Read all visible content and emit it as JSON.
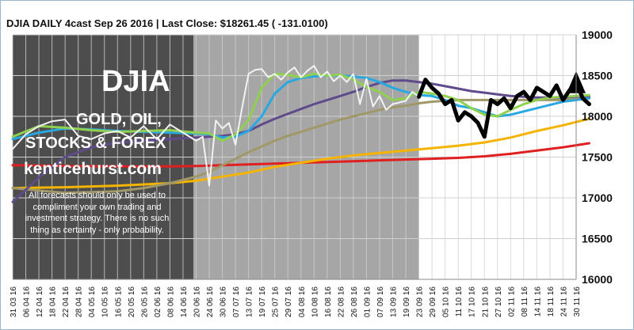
{
  "header": {
    "title": "DJIA DAILY 4cast  Sep 26 2016 | Last Close: $18261.45 ( -131.0100)"
  },
  "watermark": {
    "logo": "DJIA",
    "subtitle_line1": "GOLD, OIL,",
    "subtitle_line2": "STOCKS & FOREX",
    "site": "kenticehurst.com"
  },
  "disclaimer": "All forecasts should only be used to compliment your own trading and investment strategy. There is no such thing as certainty - only probability.",
  "colors": {
    "background": "#ffffff",
    "dark_shade": "#4d4d4d",
    "mid_shade": "#a6a6a6",
    "grid": "#d0d0d0",
    "price": "#f2f2f2",
    "forecast": "#000000",
    "ma_green": "#8fd14f",
    "ma_blue": "#29a8e0",
    "ma_purple": "#5f4b8b",
    "ma_tan": "#a09868",
    "ma_orange": "#f5b400",
    "ma_red": "#e02020"
  },
  "chart_data": {
    "type": "line",
    "title": "DJIA DAILY 4cast  Sep 26 2016 | Last Close: $18261.45 ( -131.0100)",
    "ylim": [
      16000,
      19000
    ],
    "yticks": [
      16000,
      16500,
      17000,
      17500,
      18000,
      18500,
      19000
    ],
    "y_axis_side": "right",
    "grid": true,
    "x_tick_labels": [
      "31 03 16",
      "06 04 16",
      "12 04 16",
      "18 04 16",
      "22 04 16",
      "28 04 16",
      "04 05 16",
      "10 05 16",
      "16 05 16",
      "20 05 16",
      "26 05 16",
      "02 06 16",
      "08 06 16",
      "14 06 16",
      "20 06 16",
      "24 06 16",
      "30 06 16",
      "07 07 16",
      "13 07 16",
      "19 07 16",
      "25 07 16",
      "29 07 16",
      "04 08 16",
      "10 08 16",
      "16 08 16",
      "22 08 16",
      "26 08 16",
      "01 09 16",
      "07 09 16",
      "13 09 16",
      "19 09 16",
      "23 09 16",
      "29 09 16",
      "05 10 16",
      "11 10 16",
      "17 10 16",
      "21 10 16",
      "27 10 16",
      "02 11 16",
      "08 11 16",
      "14 11 16",
      "18 11 16",
      "24 11 16",
      "30 11 16"
    ],
    "shading": [
      {
        "from_index": 0,
        "to_index": 13.8,
        "tone": "dark"
      },
      {
        "from_index": 13.8,
        "to_index": 31,
        "tone": "medium"
      }
    ],
    "series": [
      {
        "role": "price",
        "color": "#f2f2f2",
        "x": [
          0,
          1,
          2,
          3,
          4,
          5,
          6,
          7,
          8,
          9,
          10,
          11,
          12,
          13,
          14,
          14.5,
          15,
          15.5,
          16,
          16.5,
          17,
          17.5,
          18,
          18.5,
          19,
          19.5,
          20,
          20.5,
          21,
          21.5,
          22,
          22.5,
          23,
          23.5,
          24,
          24.5,
          25,
          25.5,
          26,
          26.5,
          27,
          27.5,
          28,
          28.5,
          29,
          29.5,
          30,
          30.5,
          31
        ],
        "values": [
          17600,
          17780,
          17880,
          17940,
          17960,
          17760,
          17720,
          17790,
          17820,
          17740,
          17880,
          17720,
          17900,
          17800,
          17700,
          17750,
          17150,
          17950,
          17850,
          17920,
          17650,
          18100,
          18520,
          18570,
          18580,
          18480,
          18520,
          18450,
          18540,
          18600,
          18480,
          18560,
          18620,
          18480,
          18550,
          18430,
          18500,
          18420,
          18520,
          18150,
          18460,
          18120,
          18250,
          18080,
          18150,
          18170,
          18190,
          18300,
          18240
        ]
      },
      {
        "role": "forecast",
        "color": "#000000",
        "x": [
          31,
          31.5,
          32,
          32.5,
          33,
          33.5,
          34,
          34.5,
          35,
          35.5,
          36,
          36.5,
          37,
          37.5,
          38,
          38.5,
          39,
          39.5,
          40,
          40.5,
          41,
          41.5,
          42,
          42.5,
          43,
          43.5,
          44
        ],
        "values": [
          18240,
          18450,
          18350,
          18280,
          18150,
          18200,
          17950,
          18050,
          18000,
          17920,
          17750,
          18200,
          18150,
          18220,
          18100,
          18250,
          18300,
          18200,
          18350,
          18300,
          18250,
          18380,
          18200,
          18320,
          18420,
          18220,
          18150
        ]
      },
      {
        "role": "moving-average",
        "color": "#8fd14f",
        "x": [
          0,
          2,
          4,
          6,
          8,
          10,
          12,
          14,
          15,
          16,
          17,
          18,
          19,
          20,
          21,
          22,
          23,
          24,
          25,
          26,
          27,
          28,
          29,
          30,
          31,
          32,
          33,
          34,
          35,
          36,
          37,
          38,
          39,
          40,
          41,
          42,
          43,
          44
        ],
        "values": [
          17750,
          17880,
          17860,
          17830,
          17810,
          17820,
          17830,
          17800,
          17790,
          17700,
          17780,
          17950,
          18350,
          18520,
          18510,
          18480,
          18520,
          18500,
          18510,
          18450,
          18360,
          18300,
          18200,
          18220,
          18300,
          18280,
          18250,
          18200,
          18100,
          18020,
          18000,
          18080,
          18150,
          18200,
          18230,
          18240,
          18250,
          18260
        ]
      },
      {
        "role": "moving-average",
        "color": "#29a8e0",
        "x": [
          0,
          2,
          4,
          6,
          8,
          10,
          12,
          14,
          15,
          16,
          17,
          18,
          19,
          20,
          21,
          22,
          23,
          24,
          25,
          26,
          27,
          28,
          29,
          30,
          31,
          32,
          33,
          34,
          35,
          36,
          37,
          38,
          39,
          40,
          41,
          42,
          43,
          44
        ],
        "values": [
          17720,
          17800,
          17850,
          17840,
          17820,
          17810,
          17800,
          17790,
          17780,
          17740,
          17750,
          17820,
          18000,
          18280,
          18420,
          18470,
          18490,
          18500,
          18500,
          18490,
          18470,
          18420,
          18350,
          18300,
          18260,
          18250,
          18200,
          18130,
          18100,
          18050,
          18000,
          18020,
          18060,
          18100,
          18140,
          18180,
          18200,
          18220
        ]
      },
      {
        "role": "moving-average",
        "color": "#5f4b8b",
        "x": [
          0,
          2,
          4,
          6,
          8,
          10,
          12,
          14,
          15,
          16,
          17,
          18,
          19,
          20,
          21,
          22,
          23,
          24,
          25,
          26,
          27,
          28,
          29,
          30,
          31,
          32,
          33,
          34,
          35,
          36,
          37,
          38,
          39,
          40,
          41,
          42,
          43,
          44
        ],
        "values": [
          16950,
          17250,
          17500,
          17620,
          17680,
          17700,
          17720,
          17740,
          17750,
          17760,
          17780,
          17820,
          17900,
          17970,
          18030,
          18090,
          18150,
          18200,
          18250,
          18300,
          18360,
          18410,
          18440,
          18440,
          18420,
          18400,
          18370,
          18340,
          18310,
          18290,
          18270,
          18250,
          18240,
          18230,
          18230,
          18230,
          18240,
          18240
        ]
      },
      {
        "role": "moving-average",
        "color": "#a09868",
        "x": [
          0,
          2,
          4,
          6,
          8,
          10,
          12,
          14,
          15,
          16,
          17,
          18,
          19,
          20,
          21,
          22,
          23,
          24,
          25,
          26,
          27,
          28,
          29,
          30,
          31,
          32,
          33,
          34,
          35,
          36,
          37,
          38,
          39,
          40,
          41,
          42,
          43,
          44
        ],
        "values": [
          17120,
          17090,
          17060,
          17070,
          17080,
          17120,
          17180,
          17260,
          17320,
          17400,
          17480,
          17560,
          17630,
          17700,
          17760,
          17810,
          17860,
          17910,
          17960,
          18000,
          18040,
          18080,
          18110,
          18130,
          18160,
          18180,
          18190,
          18200,
          18200,
          18200,
          18200,
          18200,
          18200,
          18200,
          18200,
          18200,
          18210,
          18220
        ]
      },
      {
        "role": "moving-average",
        "color": "#f5b400",
        "x": [
          0,
          4,
          8,
          12,
          14,
          16,
          18,
          20,
          22,
          24,
          26,
          28,
          30,
          32,
          34,
          36,
          38,
          40,
          42,
          44
        ],
        "values": [
          17120,
          17130,
          17150,
          17180,
          17210,
          17260,
          17310,
          17380,
          17430,
          17480,
          17520,
          17550,
          17580,
          17610,
          17640,
          17680,
          17740,
          17820,
          17890,
          17970
        ]
      },
      {
        "role": "moving-average",
        "color": "#e02020",
        "x": [
          0,
          4,
          8,
          12,
          14,
          16,
          18,
          20,
          22,
          24,
          26,
          28,
          30,
          32,
          34,
          36,
          38,
          40,
          42,
          44
        ],
        "values": [
          17400,
          17390,
          17385,
          17385,
          17390,
          17400,
          17410,
          17420,
          17430,
          17440,
          17450,
          17460,
          17470,
          17480,
          17490,
          17510,
          17540,
          17580,
          17620,
          17670
        ]
      }
    ]
  }
}
